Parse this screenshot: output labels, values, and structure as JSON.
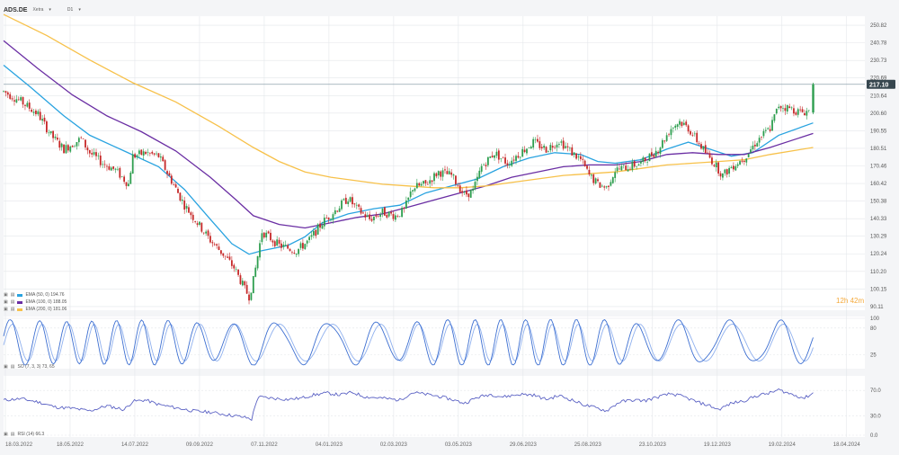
{
  "header": {
    "symbol": "ADS.DE",
    "subtitle": "Xetra",
    "symbol_dropdown_icon": "chevron-down-icon",
    "timeframe": "D1",
    "timeframe_dropdown_icon": "chevron-down-icon"
  },
  "price": {
    "last": "217.10",
    "countdown": "12h 42m",
    "badge_color": "#37474f",
    "countdown_color": "#f4a93b"
  },
  "colors": {
    "up": "#2e9e4f",
    "down": "#c62828",
    "ema50": "#29a3e0",
    "ema100": "#6a2ea3",
    "ema200": "#f7c14a",
    "sto_k": "#3d6fd1",
    "sto_d": "#8fb0ee",
    "rsi": "#5b62c4",
    "grid": "#e3e6ea"
  },
  "legend": {
    "ema50": "EMA (50, 0) 194.76",
    "ema100": "EMA (100, 0) 188.05",
    "ema200": "EMA (200, 0) 181.06",
    "sto": "SO (7, 3, 3) 73, 65",
    "rsi": "RSI (14) 66.3"
  },
  "chart_data": [
    {
      "type": "candlestick",
      "x_labels": [
        "18.03.2022",
        "18.05.2022",
        "14.07.2022",
        "09.09.2022",
        "07.11.2022",
        "04.01.2023",
        "02.03.2023",
        "03.05.2023",
        "29.06.2023",
        "25.08.2023",
        "23.10.2023",
        "19.12.2023",
        "19.02.2024",
        "18.04.2024"
      ],
      "y_ticks": [
        90.11,
        100.15,
        110.2,
        120.24,
        130.29,
        140.33,
        150.38,
        160.42,
        170.46,
        180.51,
        190.55,
        200.6,
        210.64,
        220.69,
        230.73,
        240.78,
        250.82
      ],
      "ylim": [
        88,
        256
      ],
      "price_line": 217.1,
      "price_path": [
        [
          0,
          213
        ],
        [
          18,
          208
        ],
        [
          40,
          200
        ],
        [
          55,
          188
        ],
        [
          70,
          180
        ],
        [
          90,
          186
        ],
        [
          100,
          178
        ],
        [
          115,
          172
        ],
        [
          130,
          168
        ],
        [
          145,
          160
        ],
        [
          150,
          176
        ],
        [
          165,
          178
        ],
        [
          180,
          176
        ],
        [
          195,
          162
        ],
        [
          210,
          148
        ],
        [
          225,
          138
        ],
        [
          240,
          128
        ],
        [
          255,
          120
        ],
        [
          268,
          112
        ],
        [
          280,
          100
        ],
        [
          285,
          96
        ],
        [
          290,
          105
        ],
        [
          300,
          133
        ],
        [
          320,
          125
        ],
        [
          340,
          122
        ],
        [
          355,
          128
        ],
        [
          370,
          138
        ],
        [
          385,
          145
        ],
        [
          400,
          152
        ],
        [
          410,
          146
        ],
        [
          425,
          140
        ],
        [
          440,
          144
        ],
        [
          455,
          142
        ],
        [
          465,
          145
        ],
        [
          475,
          158
        ],
        [
          490,
          160
        ],
        [
          505,
          167
        ],
        [
          520,
          165
        ],
        [
          535,
          154
        ],
        [
          545,
          156
        ],
        [
          555,
          170
        ],
        [
          570,
          178
        ],
        [
          585,
          172
        ],
        [
          600,
          178
        ],
        [
          615,
          184
        ],
        [
          630,
          180
        ],
        [
          645,
          185
        ],
        [
          660,
          178
        ],
        [
          670,
          174
        ],
        [
          680,
          165
        ],
        [
          690,
          160
        ],
        [
          700,
          158
        ],
        [
          710,
          168
        ],
        [
          725,
          170
        ],
        [
          740,
          172
        ],
        [
          760,
          180
        ],
        [
          775,
          192
        ],
        [
          785,
          196
        ],
        [
          795,
          192
        ],
        [
          805,
          185
        ],
        [
          815,
          178
        ],
        [
          825,
          172
        ],
        [
          835,
          165
        ],
        [
          845,
          170
        ],
        [
          860,
          175
        ],
        [
          875,
          185
        ],
        [
          890,
          192
        ],
        [
          900,
          205
        ],
        [
          915,
          203
        ],
        [
          925,
          201
        ],
        [
          935,
          202
        ],
        [
          940,
          217
        ]
      ]
    },
    {
      "type": "line",
      "name": "EMA (50, 0)",
      "value": 194.76,
      "points": [
        [
          0,
          228
        ],
        [
          30,
          216
        ],
        [
          70,
          199
        ],
        [
          100,
          188
        ],
        [
          140,
          179
        ],
        [
          180,
          170
        ],
        [
          210,
          157
        ],
        [
          240,
          140
        ],
        [
          265,
          126
        ],
        [
          285,
          120
        ],
        [
          300,
          122
        ],
        [
          330,
          125
        ],
        [
          350,
          130
        ],
        [
          370,
          138
        ],
        [
          400,
          143
        ],
        [
          430,
          146
        ],
        [
          460,
          148
        ],
        [
          490,
          155
        ],
        [
          520,
          159
        ],
        [
          550,
          163
        ],
        [
          580,
          170
        ],
        [
          610,
          175
        ],
        [
          640,
          178
        ],
        [
          670,
          177
        ],
        [
          690,
          173
        ],
        [
          710,
          172
        ],
        [
          740,
          174
        ],
        [
          770,
          180
        ],
        [
          795,
          184
        ],
        [
          820,
          180
        ],
        [
          845,
          176
        ],
        [
          870,
          178
        ],
        [
          900,
          188
        ],
        [
          940,
          195
        ]
      ]
    },
    {
      "type": "line",
      "name": "EMA (100, 0)",
      "value": 188.05,
      "points": [
        [
          0,
          242
        ],
        [
          40,
          226
        ],
        [
          80,
          211
        ],
        [
          120,
          199
        ],
        [
          160,
          190
        ],
        [
          200,
          179
        ],
        [
          240,
          164
        ],
        [
          270,
          151
        ],
        [
          290,
          142
        ],
        [
          320,
          137
        ],
        [
          350,
          135
        ],
        [
          380,
          138
        ],
        [
          410,
          141
        ],
        [
          440,
          143
        ],
        [
          470,
          147
        ],
        [
          500,
          151
        ],
        [
          530,
          155
        ],
        [
          560,
          159
        ],
        [
          590,
          164
        ],
        [
          620,
          167
        ],
        [
          650,
          170
        ],
        [
          680,
          171
        ],
        [
          710,
          171
        ],
        [
          740,
          173
        ],
        [
          770,
          177
        ],
        [
          800,
          178
        ],
        [
          830,
          177
        ],
        [
          860,
          177
        ],
        [
          890,
          181
        ],
        [
          940,
          189
        ]
      ]
    },
    {
      "type": "line",
      "name": "EMA (200, 0)",
      "value": 181.06,
      "points": [
        [
          0,
          257
        ],
        [
          50,
          245
        ],
        [
          100,
          231
        ],
        [
          150,
          218
        ],
        [
          200,
          207
        ],
        [
          250,
          193
        ],
        [
          290,
          181
        ],
        [
          320,
          173
        ],
        [
          350,
          167
        ],
        [
          380,
          164
        ],
        [
          410,
          162
        ],
        [
          440,
          160
        ],
        [
          470,
          159
        ],
        [
          500,
          158
        ],
        [
          530,
          158
        ],
        [
          560,
          159
        ],
        [
          590,
          161
        ],
        [
          620,
          163
        ],
        [
          650,
          165
        ],
        [
          680,
          166
        ],
        [
          710,
          167
        ],
        [
          740,
          169
        ],
        [
          770,
          171
        ],
        [
          800,
          172
        ],
        [
          830,
          173
        ],
        [
          860,
          174
        ],
        [
          890,
          177
        ],
        [
          940,
          181
        ]
      ]
    },
    {
      "type": "line",
      "name": "SO (7, 3, 3)",
      "values_text": "73, 65",
      "ylim": [
        0,
        100
      ],
      "y_ticks": [
        25,
        80,
        100
      ]
    },
    {
      "type": "line",
      "name": "RSI (14)",
      "value": 66.3,
      "ylim": [
        0,
        90
      ],
      "y_ticks": [
        0,
        30,
        70
      ],
      "points": [
        [
          0,
          55
        ],
        [
          20,
          57
        ],
        [
          40,
          52
        ],
        [
          60,
          44
        ],
        [
          80,
          42
        ],
        [
          100,
          38
        ],
        [
          120,
          46
        ],
        [
          140,
          40
        ],
        [
          150,
          53
        ],
        [
          165,
          55
        ],
        [
          180,
          48
        ],
        [
          200,
          43
        ],
        [
          220,
          38
        ],
        [
          240,
          36
        ],
        [
          260,
          32
        ],
        [
          280,
          28
        ],
        [
          288,
          25
        ],
        [
          295,
          60
        ],
        [
          310,
          58
        ],
        [
          330,
          56
        ],
        [
          345,
          58
        ],
        [
          360,
          63
        ],
        [
          375,
          66
        ],
        [
          390,
          63
        ],
        [
          405,
          67
        ],
        [
          420,
          60
        ],
        [
          440,
          58
        ],
        [
          460,
          55
        ],
        [
          475,
          67
        ],
        [
          490,
          64
        ],
        [
          505,
          61
        ],
        [
          520,
          56
        ],
        [
          535,
          50
        ],
        [
          550,
          59
        ],
        [
          565,
          64
        ],
        [
          580,
          60
        ],
        [
          600,
          64
        ],
        [
          615,
          63
        ],
        [
          630,
          56
        ],
        [
          645,
          62
        ],
        [
          660,
          55
        ],
        [
          675,
          47
        ],
        [
          690,
          42
        ],
        [
          700,
          38
        ],
        [
          715,
          52
        ],
        [
          730,
          55
        ],
        [
          745,
          54
        ],
        [
          760,
          60
        ],
        [
          775,
          65
        ],
        [
          790,
          60
        ],
        [
          805,
          52
        ],
        [
          820,
          46
        ],
        [
          830,
          40
        ],
        [
          845,
          50
        ],
        [
          860,
          54
        ],
        [
          875,
          62
        ],
        [
          890,
          66
        ],
        [
          900,
          71
        ],
        [
          915,
          64
        ],
        [
          930,
          58
        ],
        [
          940,
          66.3
        ]
      ]
    }
  ]
}
